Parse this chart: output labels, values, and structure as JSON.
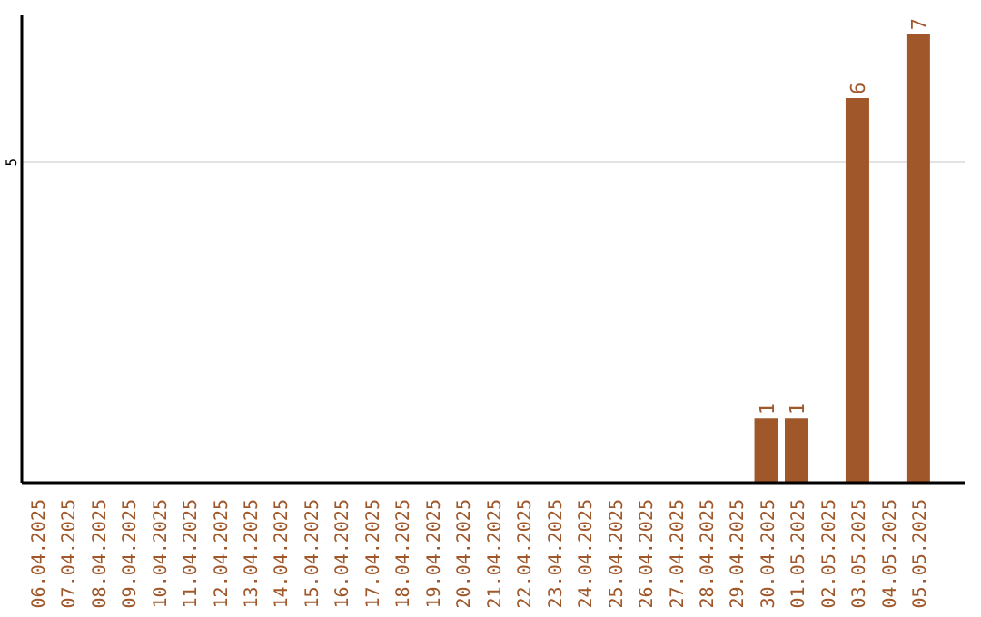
{
  "chart_data": {
    "type": "bar",
    "categories": [
      "06.04.2025",
      "07.04.2025",
      "08.04.2025",
      "09.04.2025",
      "10.04.2025",
      "11.04.2025",
      "12.04.2025",
      "13.04.2025",
      "14.04.2025",
      "15.04.2025",
      "16.04.2025",
      "17.04.2025",
      "18.04.2025",
      "19.04.2025",
      "20.04.2025",
      "21.04.2025",
      "22.04.2025",
      "23.04.2025",
      "24.04.2025",
      "25.04.2025",
      "26.04.2025",
      "27.04.2025",
      "28.04.2025",
      "29.04.2025",
      "30.04.2025",
      "01.05.2025",
      "02.05.2025",
      "03.05.2025",
      "04.05.2025",
      "05.05.2025"
    ],
    "values": [
      null,
      null,
      null,
      null,
      null,
      null,
      null,
      null,
      null,
      null,
      null,
      null,
      null,
      null,
      null,
      null,
      null,
      null,
      null,
      null,
      null,
      null,
      null,
      null,
      1,
      1,
      null,
      6,
      null,
      7
    ],
    "color": "#a0582a",
    "ylim": [
      0,
      7.3
    ],
    "yticks": [
      5
    ],
    "grid": "y",
    "data_labels": true
  }
}
